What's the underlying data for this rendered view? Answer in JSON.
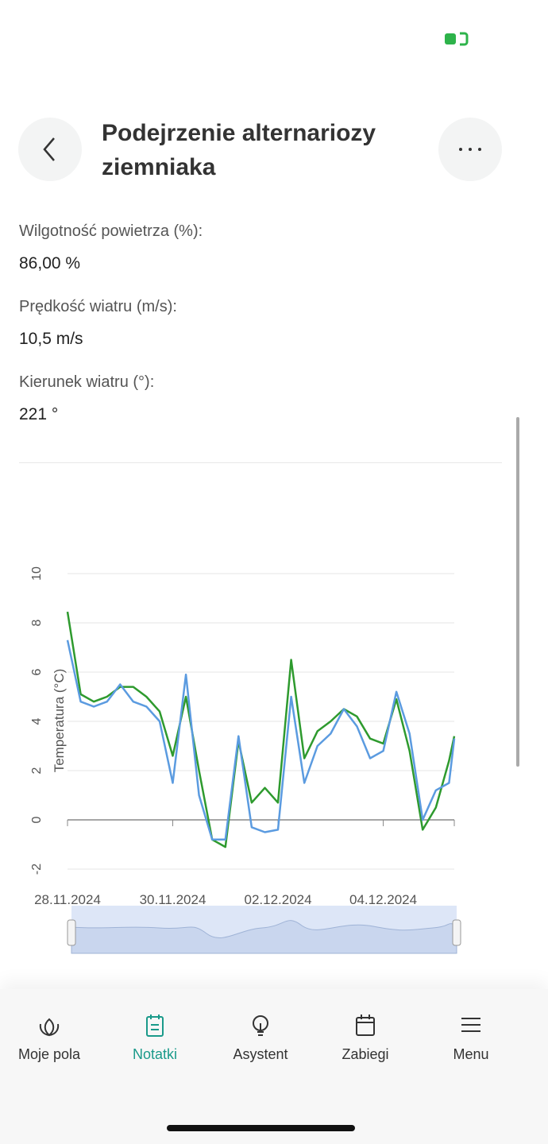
{
  "header": {
    "title": "Podejrzenie alternariozy ziemniaka"
  },
  "fields": [
    {
      "label": "Wilgotność powietrza (%):",
      "value": "86,00 %"
    },
    {
      "label": "Prędkość wiatru (m/s):",
      "value": "10,5 m/s"
    },
    {
      "label": "Kierunek wiatru (°):",
      "value": "221 °"
    }
  ],
  "chart_data": {
    "type": "line",
    "y_label": "Temperatura (°C)",
    "x": [
      0,
      0.25,
      0.5,
      0.75,
      1,
      1.25,
      1.5,
      1.75,
      2,
      2.25,
      2.5,
      2.75,
      3,
      3.25,
      3.5,
      3.75,
      4,
      4.25,
      4.5,
      4.75,
      5,
      5.25,
      5.5,
      5.75,
      6,
      6.25,
      6.5,
      6.75,
      7,
      7.25,
      7.35
    ],
    "series": [
      {
        "color": "#2e9a2e",
        "values": [
          8.45,
          5.1,
          4.8,
          5.0,
          5.4,
          5.4,
          5.0,
          4.4,
          2.6,
          5.0,
          2.0,
          -0.8,
          -1.1,
          3.2,
          0.7,
          1.3,
          0.7,
          6.5,
          2.5,
          3.6,
          4.0,
          4.5,
          4.2,
          3.3,
          3.1,
          4.9,
          2.8,
          -0.4,
          0.5,
          2.4,
          3.4
        ]
      },
      {
        "color": "#5b9be0",
        "values": [
          7.3,
          4.8,
          4.6,
          4.8,
          5.5,
          4.8,
          4.6,
          4.0,
          1.5,
          5.9,
          1.0,
          -0.8,
          -0.8,
          3.4,
          -0.3,
          -0.5,
          -0.4,
          5.0,
          1.5,
          3.0,
          3.5,
          4.5,
          3.8,
          2.5,
          2.8,
          5.2,
          3.5,
          0.0,
          1.2,
          1.5,
          3.3
        ]
      }
    ],
    "xlim": [
      0,
      7.35
    ],
    "xticks": [
      {
        "value": 0,
        "label": "28.11.2024"
      },
      {
        "value": 2,
        "label": "30.11.2024"
      },
      {
        "value": 4,
        "label": "02.12.2024"
      },
      {
        "value": 6,
        "label": "04.12.2024"
      }
    ],
    "ylim": [
      -2,
      10
    ],
    "yticks": [
      -2,
      0,
      2,
      4,
      6,
      8,
      10
    ],
    "grid": true
  },
  "nav": {
    "active_index": 1,
    "items": [
      {
        "label": "Moje pola"
      },
      {
        "label": "Notatki"
      },
      {
        "label": "Asystent"
      },
      {
        "label": "Zabiegi"
      },
      {
        "label": "Menu"
      }
    ]
  }
}
